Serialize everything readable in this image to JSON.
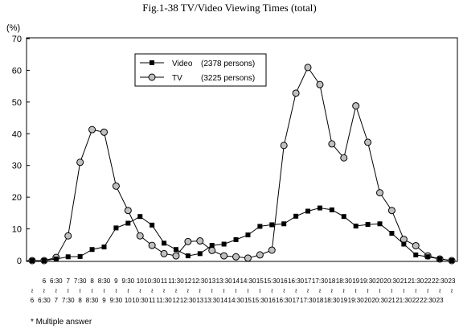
{
  "chart_data": {
    "type": "line",
    "title": "Fig.1-38 TV/Video Viewing Times (total)",
    "ylabel": "(%)",
    "ylim": [
      0,
      70
    ],
    "yticks": [
      0,
      10,
      20,
      30,
      40,
      50,
      60,
      70
    ],
    "grid": false,
    "legend_position": "top-center",
    "x_ticks": [
      {
        "top": "",
        "bottom": "6"
      },
      {
        "top": "6",
        "bottom": "6:30"
      },
      {
        "top": "6:30",
        "bottom": "7"
      },
      {
        "top": "7",
        "bottom": "7:30"
      },
      {
        "top": "7:30",
        "bottom": "8"
      },
      {
        "top": "8",
        "bottom": "8:30"
      },
      {
        "top": "8:30",
        "bottom": "9"
      },
      {
        "top": "9",
        "bottom": "9:30"
      },
      {
        "top": "9:30",
        "bottom": "10"
      },
      {
        "top": "10",
        "bottom": "10:30"
      },
      {
        "top": "10:30",
        "bottom": "11"
      },
      {
        "top": "11",
        "bottom": "11:30"
      },
      {
        "top": "11:30",
        "bottom": "12"
      },
      {
        "top": "12",
        "bottom": "12:30"
      },
      {
        "top": "12:30",
        "bottom": "13"
      },
      {
        "top": "13",
        "bottom": "13:30"
      },
      {
        "top": "13:30",
        "bottom": "14"
      },
      {
        "top": "14",
        "bottom": "14:30"
      },
      {
        "top": "14:30",
        "bottom": "15"
      },
      {
        "top": "15",
        "bottom": "15:30"
      },
      {
        "top": "15:30",
        "bottom": "16"
      },
      {
        "top": "16",
        "bottom": "16:30"
      },
      {
        "top": "16:30",
        "bottom": "17"
      },
      {
        "top": "17",
        "bottom": "17:30"
      },
      {
        "top": "17:30",
        "bottom": "18"
      },
      {
        "top": "18",
        "bottom": "18:30"
      },
      {
        "top": "18:30",
        "bottom": "19"
      },
      {
        "top": "19",
        "bottom": "19:30"
      },
      {
        "top": "19:30",
        "bottom": "20"
      },
      {
        "top": "20",
        "bottom": "20:30"
      },
      {
        "top": "20:30",
        "bottom": "21"
      },
      {
        "top": "21",
        "bottom": "21:30"
      },
      {
        "top": "21:30",
        "bottom": "22"
      },
      {
        "top": "22",
        "bottom": "22:30"
      },
      {
        "top": "22:30",
        "bottom": "23"
      },
      {
        "top": "23",
        "bottom": ""
      }
    ],
    "series": [
      {
        "name": "Video",
        "legend_note": "(2378 persons)",
        "marker": "square",
        "color": "#000000",
        "values": [
          0,
          0,
          0.5,
          1.2,
          1.3,
          3.5,
          4.3,
          10.3,
          11.8,
          13.9,
          11.2,
          5.5,
          3.5,
          1.5,
          2.2,
          4.8,
          5.2,
          6.6,
          8.1,
          10.8,
          11.3,
          11.6,
          14.0,
          15.6,
          16.6,
          16.0,
          13.9,
          10.9,
          11.4,
          11.6,
          8.6,
          5.2,
          1.8,
          1.2,
          0.5,
          0
        ]
      },
      {
        "name": "TV",
        "legend_note": "(3225 persons)",
        "marker": "circle",
        "color": "#000000",
        "values": [
          0,
          0,
          1.0,
          7.8,
          31.0,
          41.3,
          40.5,
          23.5,
          15.8,
          7.8,
          4.8,
          2.2,
          1.5,
          6.0,
          6.2,
          3.2,
          1.5,
          1.2,
          0.8,
          1.8,
          3.3,
          36.3,
          52.8,
          60.9,
          55.5,
          36.8,
          32.4,
          48.8,
          37.3,
          21.4,
          15.8,
          6.7,
          4.7,
          1.5,
          0.5,
          0
        ]
      }
    ],
    "footnote": "* Multiple answer"
  }
}
